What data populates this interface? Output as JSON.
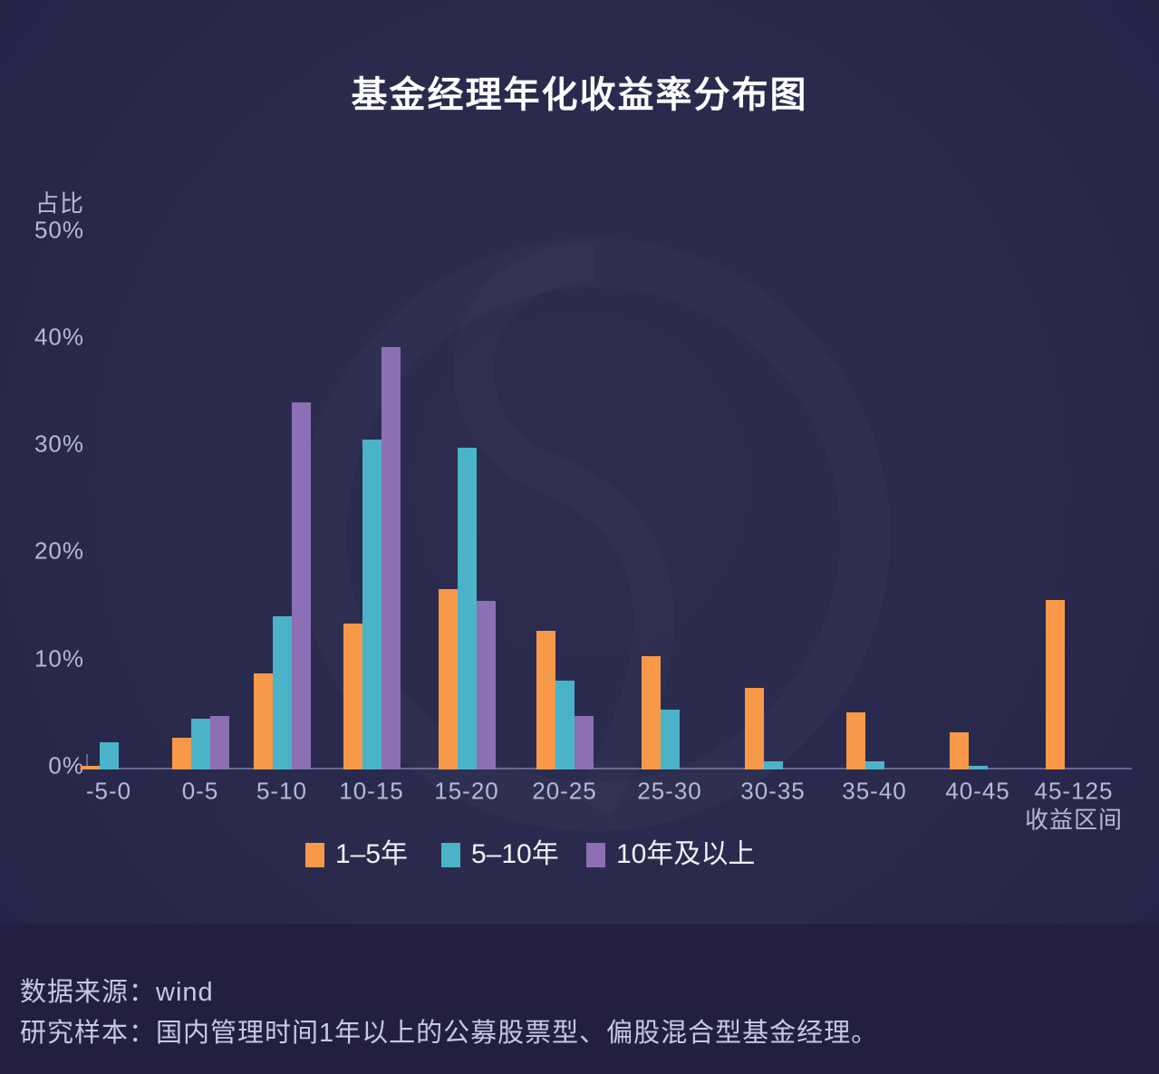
{
  "chart_data": {
    "type": "bar",
    "title": "基金经理年化收益率分布图",
    "y_axis_title": "占比",
    "x_axis_unit": "收益区间",
    "categories": [
      "-5-0",
      "0-5",
      "5-10",
      "10-15",
      "15-20",
      "20-25",
      "25-30",
      "30-35",
      "35-40",
      "40-45",
      "45-125"
    ],
    "series": [
      {
        "name": "1–5年",
        "color": "#f8994a",
        "values": [
          0.3,
          3.0,
          9.0,
          13.6,
          16.8,
          12.9,
          10.6,
          7.6,
          5.3,
          3.5,
          15.8
        ]
      },
      {
        "name": "5–10年",
        "color": "#4bb3c8",
        "values": [
          2.5,
          4.7,
          14.3,
          30.8,
          30.0,
          8.3,
          5.6,
          0.8,
          0.8,
          0.3,
          0
        ]
      },
      {
        "name": "10年及以上",
        "color": "#8d6fb6",
        "values": [
          0,
          5.0,
          34.2,
          39.4,
          15.7,
          5.0,
          0,
          0,
          0,
          0,
          0
        ]
      }
    ],
    "ylim": [
      0,
      50
    ],
    "y_ticks": [
      {
        "label": "0%",
        "value": 0
      },
      {
        "label": "10%",
        "value": 10
      },
      {
        "label": "20%",
        "value": 20
      },
      {
        "label": "30%",
        "value": 30
      },
      {
        "label": "40%",
        "value": 40
      },
      {
        "label": "50%",
        "value": 50
      }
    ],
    "grid": false,
    "legend_position": "bottom"
  },
  "footer": {
    "source_label": "数据来源：",
    "source_value": "wind",
    "sample_text": "研究样本：国内管理时间1年以上的公募股票型、偏股混合型基金经理。"
  }
}
